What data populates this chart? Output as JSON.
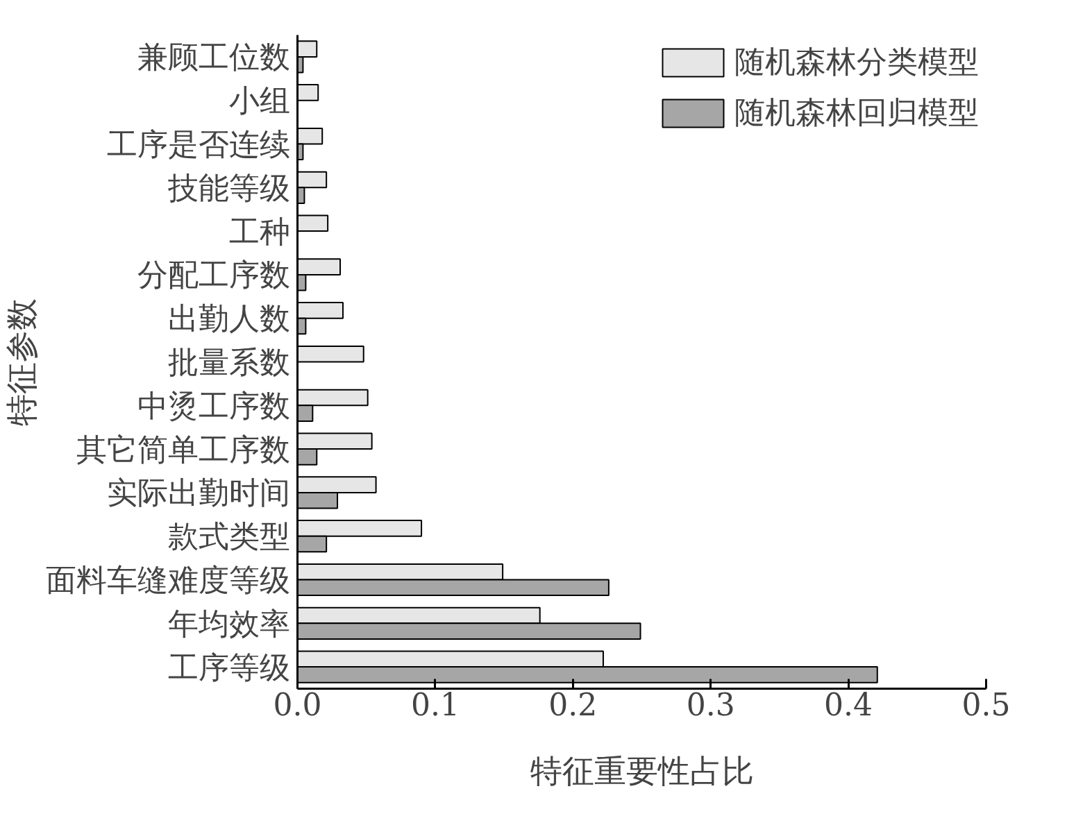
{
  "chart_data": {
    "type": "bar",
    "orientation": "horizontal",
    "xlabel": "特征重要性占比",
    "ylabel": "特征参数",
    "categories": [
      "兼顾工位数",
      "小组",
      "工序是否连续",
      "技能等级",
      "工种",
      "分配工序数",
      "出勤人数",
      "批量系数",
      "中烫工序数",
      "其它简单工序数",
      "实际出勤时间",
      "款式类型",
      "面料车缝难度等级",
      "年均效率",
      "工序等级"
    ],
    "series": [
      {
        "name": "随机森林分类模型",
        "color": "#e6e6e6",
        "values": [
          0.014,
          0.015,
          0.018,
          0.021,
          0.022,
          0.031,
          0.033,
          0.048,
          0.051,
          0.054,
          0.057,
          0.09,
          0.149,
          0.176,
          0.222
        ]
      },
      {
        "name": "随机森林回归模型",
        "color": "#a6a6a6",
        "values": [
          0.004,
          null,
          0.004,
          0.005,
          null,
          0.006,
          0.006,
          null,
          0.011,
          0.014,
          0.029,
          0.021,
          0.226,
          0.249,
          0.421
        ]
      }
    ],
    "xlim": [
      0,
      0.5
    ],
    "xticks": [
      {
        "value": 0,
        "label": "0.0"
      },
      0.1,
      0.2,
      0.3,
      0.4,
      0.5
    ],
    "grid": false,
    "legend": "top right"
  }
}
